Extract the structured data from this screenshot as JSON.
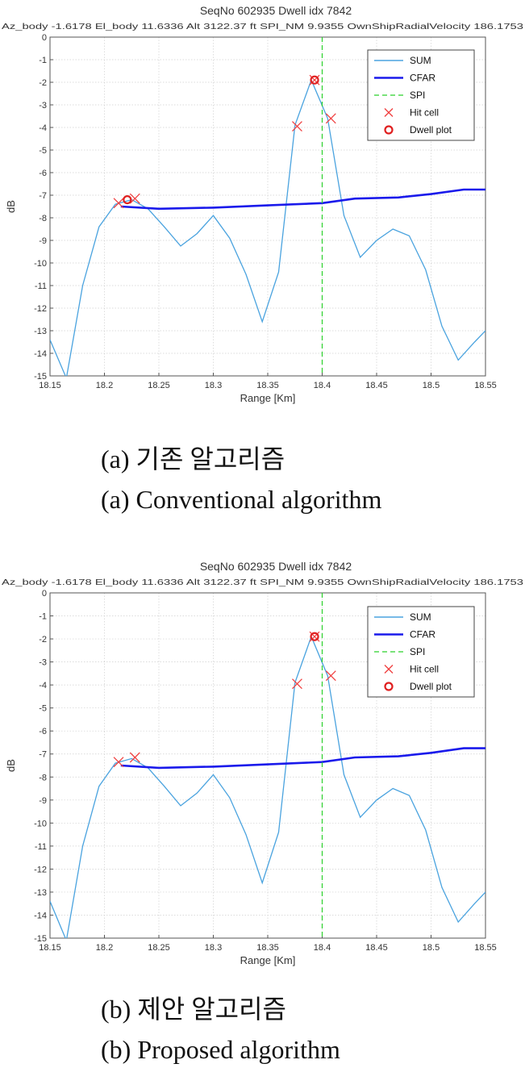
{
  "chart_data": [
    {
      "type": "line",
      "title": "SeqNo 602935   Dwell idx 7842",
      "subtitle": "Az_body -1.6178   El_body 11.6336   Alt 3122.37 ft   SPI_NM 9.9355   OwnShipRadialVelocity 186.1753",
      "xlabel": "Range [Km]",
      "ylabel": "dB",
      "xlim": [
        18.15,
        18.55
      ],
      "ylim": [
        -15,
        0
      ],
      "x_ticks": [
        "18.15",
        "18.2",
        "18.25",
        "18.3",
        "18.35",
        "18.4",
        "18.45",
        "18.5",
        "18.55"
      ],
      "y_ticks": [
        "0",
        "-1",
        "-2",
        "-3",
        "-4",
        "-5",
        "-6",
        "-7",
        "-8",
        "-9",
        "-10",
        "-11",
        "-12",
        "-13",
        "-14",
        "-15"
      ],
      "grid": true,
      "legend_position": "top-right",
      "legend": [
        "SUM",
        "CFAR",
        "SPI",
        "Hit cell",
        "Dwell plot"
      ],
      "caption_ko": "(a) 기존 알고리즘",
      "caption_en": "(a) Conventional algorithm",
      "series": [
        {
          "name": "SUM",
          "color": "#4aa3df",
          "x": [
            18.15,
            18.165,
            18.18,
            18.195,
            18.21,
            18.225,
            18.24,
            18.255,
            18.27,
            18.285,
            18.3,
            18.315,
            18.33,
            18.345,
            18.36,
            18.375,
            18.39,
            18.405,
            18.42,
            18.435,
            18.45,
            18.465,
            18.48,
            18.495,
            18.51,
            18.525,
            18.54,
            18.55
          ],
          "y": [
            -13.4,
            -15.1,
            -11,
            -8.4,
            -7.4,
            -7.2,
            -7.6,
            -8.4,
            -9.25,
            -8.7,
            -7.9,
            -8.9,
            -10.5,
            -12.6,
            -10.4,
            -3.9,
            -1.9,
            -3.6,
            -7.9,
            -9.75,
            -9,
            -8.5,
            -8.8,
            -10.3,
            -12.8,
            -14.3,
            -13.5,
            -13
          ]
        },
        {
          "name": "CFAR",
          "color": "#1a1aeb",
          "x": [
            18.215,
            18.25,
            18.3,
            18.35,
            18.4,
            18.43,
            18.47,
            18.5,
            18.53,
            18.55
          ],
          "y": [
            -7.5,
            -7.6,
            -7.55,
            -7.45,
            -7.35,
            -7.15,
            -7.1,
            -6.95,
            -6.75,
            -6.75
          ]
        },
        {
          "name": "SPI",
          "color": "#2bd12b",
          "x": [
            18.4,
            18.4
          ],
          "y": [
            0,
            -15
          ]
        },
        {
          "name": "Hit cell",
          "color": "#f04040",
          "x": [
            18.213,
            18.228,
            18.377,
            18.408,
            18.393
          ],
          "y": [
            -7.35,
            -7.15,
            -3.95,
            -3.6,
            -1.9
          ]
        },
        {
          "name": "Dwell plot",
          "color": "#e02020",
          "x": [
            18.221,
            18.393
          ],
          "y": [
            -7.2,
            -1.9
          ]
        }
      ]
    },
    {
      "type": "line",
      "title": "SeqNo 602935   Dwell idx 7842",
      "subtitle": "Az_body -1.6178   El_body 11.6336   Alt 3122.37 ft   SPI_NM 9.9355   OwnShipRadialVelocity 186.1753",
      "xlabel": "Range [Km]",
      "ylabel": "dB",
      "xlim": [
        18.15,
        18.55
      ],
      "ylim": [
        -15,
        0
      ],
      "x_ticks": [
        "18.15",
        "18.2",
        "18.25",
        "18.3",
        "18.35",
        "18.4",
        "18.45",
        "18.5",
        "18.55"
      ],
      "y_ticks": [
        "0",
        "-1",
        "-2",
        "-3",
        "-4",
        "-5",
        "-6",
        "-7",
        "-8",
        "-9",
        "-10",
        "-11",
        "-12",
        "-13",
        "-14",
        "-15"
      ],
      "grid": true,
      "legend_position": "top-right",
      "legend": [
        "SUM",
        "CFAR",
        "SPI",
        "Hit cell",
        "Dwell plot"
      ],
      "caption_ko": "(b) 제안 알고리즘",
      "caption_en": "(b) Proposed algorithm",
      "series": [
        {
          "name": "SUM",
          "color": "#4aa3df",
          "x": [
            18.15,
            18.165,
            18.18,
            18.195,
            18.21,
            18.225,
            18.24,
            18.255,
            18.27,
            18.285,
            18.3,
            18.315,
            18.33,
            18.345,
            18.36,
            18.375,
            18.39,
            18.405,
            18.42,
            18.435,
            18.45,
            18.465,
            18.48,
            18.495,
            18.51,
            18.525,
            18.54,
            18.55
          ],
          "y": [
            -13.4,
            -15.1,
            -11,
            -8.4,
            -7.4,
            -7.2,
            -7.6,
            -8.4,
            -9.25,
            -8.7,
            -7.9,
            -8.9,
            -10.5,
            -12.6,
            -10.4,
            -3.9,
            -1.9,
            -3.6,
            -7.9,
            -9.75,
            -9,
            -8.5,
            -8.8,
            -10.3,
            -12.8,
            -14.3,
            -13.5,
            -13
          ]
        },
        {
          "name": "CFAR",
          "color": "#1a1aeb",
          "x": [
            18.215,
            18.25,
            18.3,
            18.35,
            18.4,
            18.43,
            18.47,
            18.5,
            18.53,
            18.55
          ],
          "y": [
            -7.5,
            -7.6,
            -7.55,
            -7.45,
            -7.35,
            -7.15,
            -7.1,
            -6.95,
            -6.75,
            -6.75
          ]
        },
        {
          "name": "SPI",
          "color": "#2bd12b",
          "x": [
            18.4,
            18.4
          ],
          "y": [
            0,
            -15
          ]
        },
        {
          "name": "Hit cell",
          "color": "#f04040",
          "x": [
            18.213,
            18.228,
            18.377,
            18.408,
            18.393
          ],
          "y": [
            -7.35,
            -7.15,
            -3.95,
            -3.6,
            -1.9
          ]
        },
        {
          "name": "Dwell plot",
          "color": "#e02020",
          "x": [
            18.393
          ],
          "y": [
            -1.9
          ]
        }
      ]
    }
  ]
}
